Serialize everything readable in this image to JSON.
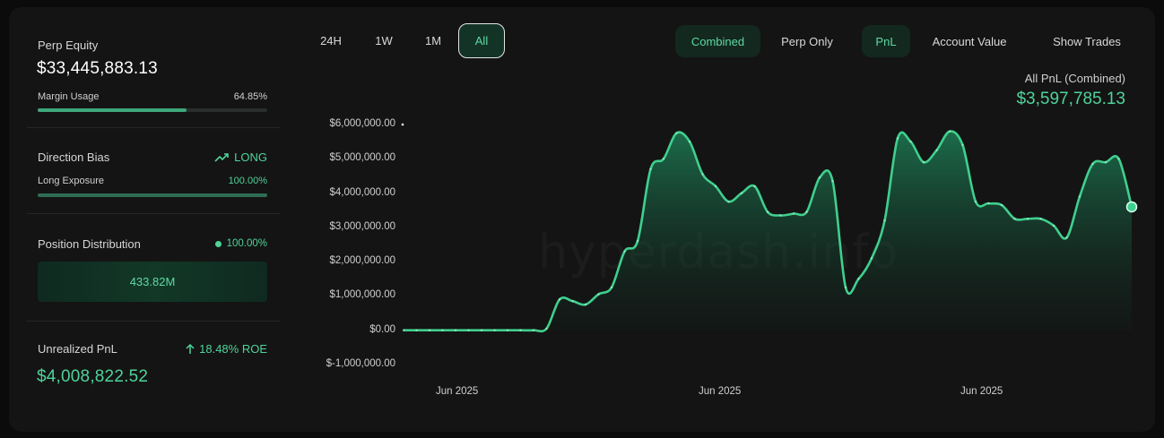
{
  "left": {
    "perp_equity": {
      "label": "Perp Equity",
      "value": "$33,445,883.13"
    },
    "margin_usage": {
      "label": "Margin Usage",
      "value": "64.85%",
      "fraction": 0.6485
    },
    "direction_bias": {
      "label": "Direction Bias",
      "value": "LONG",
      "icon": "trending-up-icon"
    },
    "long_exposure": {
      "label": "Long Exposure",
      "value": "100.00%",
      "fraction": 1.0
    },
    "position_distribution": {
      "label": "Position Distribution",
      "value": "100.00%",
      "box_value": "433.82M"
    },
    "unrealized_pnl": {
      "label": "Unrealized PnL",
      "roe": "18.48% ROE",
      "icon": "arrow-up-icon",
      "value": "$4,008,822.52"
    }
  },
  "controls": {
    "ranges": [
      "24H",
      "1W",
      "1M",
      "All"
    ],
    "active_range": "All",
    "scope": [
      "Combined",
      "Perp Only"
    ],
    "active_scope": "Combined",
    "metric": [
      "PnL",
      "Account Value"
    ],
    "active_metric": "PnL",
    "show_trades": "Show Trades"
  },
  "summary": {
    "label": "All PnL (Combined)",
    "value": "$3,597,785.13"
  },
  "watermark": "hyperdash.info",
  "colors": {
    "accent": "#4fd39a",
    "line": "#3fcf8e",
    "background": "#141414"
  },
  "chart_data": {
    "type": "area",
    "y_ticks": [
      "$6,000,000.00",
      "$5,000,000.00",
      "$4,000,000.00",
      "$3,000,000.00",
      "$2,000,000.00",
      "$1,000,000.00",
      "$0.00",
      "$-1,000,000.00"
    ],
    "x_ticks": [
      "Jun 2025",
      "Jun 2025",
      "Jun 2025"
    ],
    "ylim": [
      -1000000,
      6000000
    ],
    "grid": false,
    "series": [
      {
        "values": [
          0,
          0,
          0,
          0,
          0,
          0,
          0,
          0,
          0,
          0,
          0,
          50000,
          900000,
          850000,
          750000,
          1050000,
          1250000,
          2300000,
          2600000,
          4700000,
          5000000,
          5750000,
          5500000,
          4550000,
          4200000,
          3750000,
          4000000,
          4200000,
          3450000,
          3350000,
          3400000,
          3450000,
          4450000,
          4350000,
          1250000,
          1500000,
          2100000,
          3200000,
          5600000,
          5500000,
          4900000,
          5250000,
          5800000,
          5400000,
          3750000,
          3700000,
          3650000,
          3250000,
          3250000,
          3250000,
          3050000,
          2700000,
          3900000,
          4850000,
          4900000,
          5000000,
          3597785
        ]
      }
    ]
  }
}
